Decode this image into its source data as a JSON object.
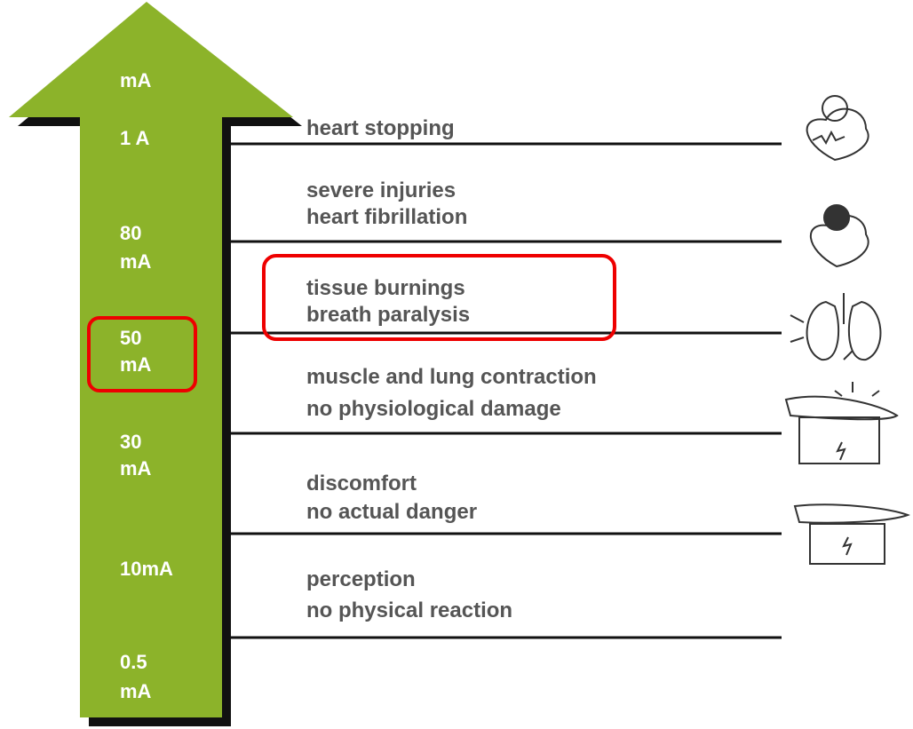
{
  "scale": {
    "unit": "mA",
    "levels": [
      [
        "1 A"
      ],
      [
        "80",
        "mA"
      ],
      [
        "50",
        "mA"
      ],
      [
        "30",
        "mA"
      ],
      [
        "10mA"
      ],
      [
        "0.5",
        "mA"
      ]
    ]
  },
  "effects": [
    [
      "heart stopping"
    ],
    [
      "severe injuries",
      "heart fibrillation"
    ],
    [
      "tissue burnings",
      "breath paralysis"
    ],
    [
      "muscle and lung contraction",
      "no physiological damage"
    ],
    [
      "discomfort",
      "no actual danger"
    ],
    [
      "perception",
      "no physical reaction"
    ]
  ]
}
